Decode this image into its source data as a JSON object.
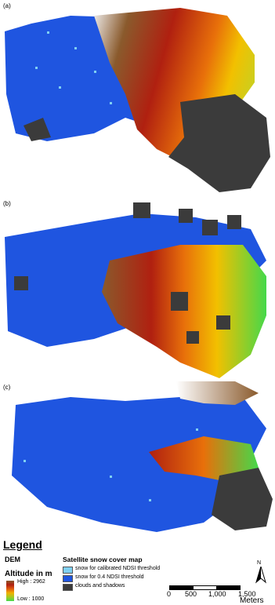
{
  "panels": [
    {
      "label": "(a)"
    },
    {
      "label": "(b)"
    },
    {
      "label": "(c)"
    }
  ],
  "legend": {
    "title": "Legend",
    "dem_title": "DEM",
    "altitude_title": "Altitude in m",
    "high_label": "High : 2962",
    "low_label": "Low : 1000",
    "snow_title": "Satellite snow cover map",
    "items": [
      {
        "label": "snow for calibrated NDSI threshold",
        "color": "#7fd0f2"
      },
      {
        "label": "snow for 0.4 NDSI threshold",
        "color": "#1f55e0"
      },
      {
        "label": "clouds and shadows",
        "color": "#3b3b3b"
      }
    ]
  },
  "north_arrow": {
    "label": "N"
  },
  "scale_bar": {
    "ticks": [
      "0",
      "500",
      "1,000",
      "1,500"
    ],
    "unit": "Meters"
  },
  "colors": {
    "snow_calibrated": "#7fd0f2",
    "snow_04": "#1f55e0",
    "clouds": "#3b3b3b",
    "dem_high": "#8a5a2c",
    "dem_mid": "#e05a10",
    "dem_low": "#45d84a"
  }
}
